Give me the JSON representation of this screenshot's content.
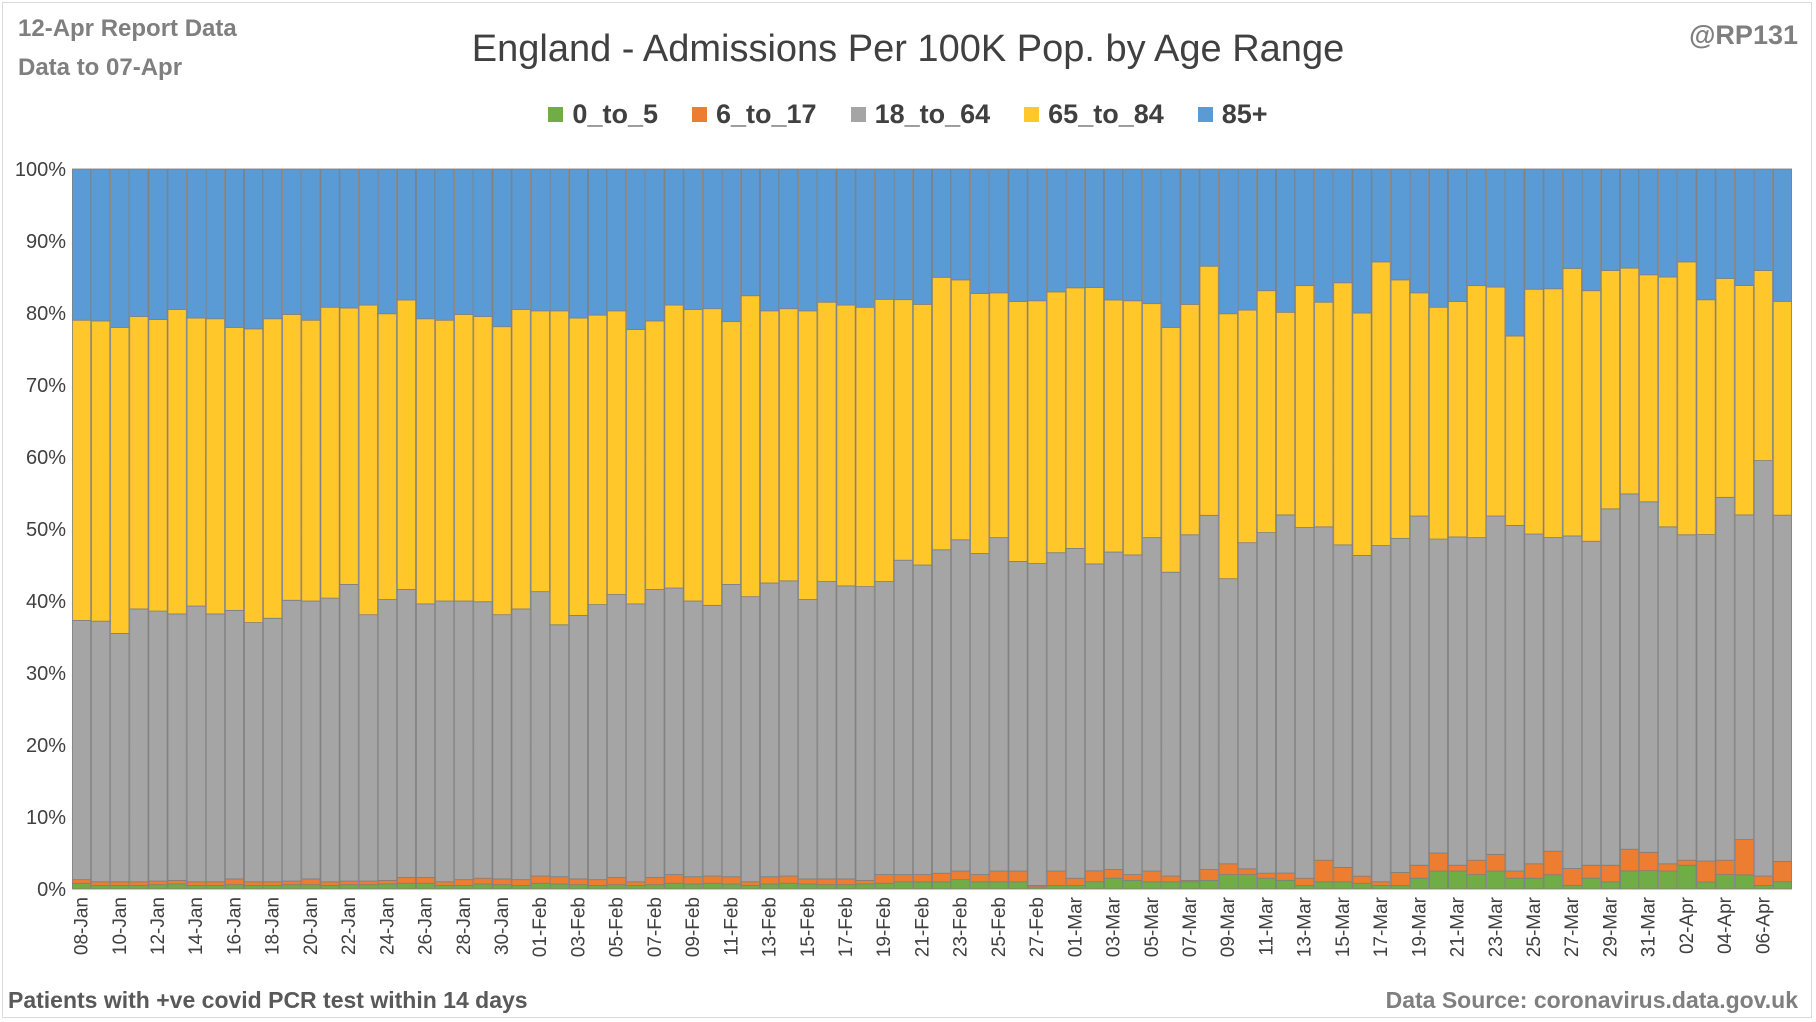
{
  "header": {
    "report_date": "12-Apr Report Data",
    "data_to": "Data to 07-Apr",
    "handle": "@RP131"
  },
  "footer": {
    "note": "Patients with  +ve covid PCR test within 14 days",
    "source": "Data Source: coronavirus.data.gov.uk"
  },
  "chart_data": {
    "type": "bar",
    "stacked": true,
    "normalized": true,
    "title": "England - Admissions Per 100K Pop. by Age Range",
    "xlabel": "",
    "ylabel": "",
    "ylim": [
      0,
      100
    ],
    "yticks": [
      "0%",
      "10%",
      "20%",
      "30%",
      "40%",
      "50%",
      "60%",
      "70%",
      "80%",
      "90%",
      "100%"
    ],
    "grid": true,
    "legend_position": "top",
    "categories": [
      "08-Jan",
      "09-Jan",
      "10-Jan",
      "11-Jan",
      "12-Jan",
      "13-Jan",
      "14-Jan",
      "15-Jan",
      "16-Jan",
      "17-Jan",
      "18-Jan",
      "19-Jan",
      "20-Jan",
      "21-Jan",
      "22-Jan",
      "23-Jan",
      "24-Jan",
      "25-Jan",
      "26-Jan",
      "27-Jan",
      "28-Jan",
      "29-Jan",
      "30-Jan",
      "31-Jan",
      "01-Feb",
      "02-Feb",
      "03-Feb",
      "04-Feb",
      "05-Feb",
      "06-Feb",
      "07-Feb",
      "08-Feb",
      "09-Feb",
      "10-Feb",
      "11-Feb",
      "12-Feb",
      "13-Feb",
      "14-Feb",
      "15-Feb",
      "16-Feb",
      "17-Feb",
      "18-Feb",
      "19-Feb",
      "20-Feb",
      "21-Feb",
      "22-Feb",
      "23-Feb",
      "24-Feb",
      "25-Feb",
      "26-Feb",
      "27-Feb",
      "28-Feb",
      "01-Mar",
      "02-Mar",
      "03-Mar",
      "04-Mar",
      "05-Mar",
      "06-Mar",
      "07-Mar",
      "08-Mar",
      "09-Mar",
      "10-Mar",
      "11-Mar",
      "12-Mar",
      "13-Mar",
      "14-Mar",
      "15-Mar",
      "16-Mar",
      "17-Mar",
      "18-Mar",
      "19-Mar",
      "20-Mar",
      "21-Mar",
      "22-Mar",
      "23-Mar",
      "24-Mar",
      "25-Mar",
      "26-Mar",
      "27-Mar",
      "28-Mar",
      "29-Mar",
      "30-Mar",
      "31-Mar",
      "01-Apr",
      "02-Apr",
      "03-Apr",
      "04-Apr",
      "05-Apr",
      "06-Apr",
      "07-Apr"
    ],
    "series": [
      {
        "name": "0_to_5",
        "color": "#70ad47",
        "values": [
          0.8,
          0.5,
          0.5,
          0.5,
          0.6,
          0.7,
          0.5,
          0.5,
          0.6,
          0.5,
          0.5,
          0.6,
          0.6,
          0.5,
          0.6,
          0.6,
          0.7,
          0.8,
          0.8,
          0.5,
          0.5,
          0.7,
          0.6,
          0.5,
          0.8,
          0.7,
          0.6,
          0.5,
          0.6,
          0.5,
          0.6,
          0.8,
          0.7,
          0.8,
          0.7,
          0.5,
          0.7,
          0.8,
          0.7,
          0.6,
          0.6,
          0.7,
          0.8,
          1.0,
          1.0,
          1.0,
          1.3,
          1.0,
          1.0,
          1.0,
          0.3,
          0.5,
          0.5,
          1.0,
          1.5,
          1.2,
          1.0,
          1.0,
          1.0,
          1.2,
          2.0,
          2.0,
          1.5,
          1.2,
          0.5,
          1.0,
          1.0,
          0.8,
          0.5,
          0.5,
          1.5,
          2.5,
          2.5,
          2.0,
          2.5,
          1.5,
          1.5,
          2.0,
          0.5,
          1.5,
          1.0,
          2.5,
          2.5,
          2.5,
          3.3,
          1.0,
          2.0,
          2.0,
          0.5,
          1.0
        ]
      },
      {
        "name": "6_to_17",
        "color": "#ed7d31",
        "values": [
          0.5,
          0.5,
          0.5,
          0.5,
          0.5,
          0.5,
          0.5,
          0.5,
          0.8,
          0.5,
          0.5,
          0.5,
          0.8,
          0.5,
          0.5,
          0.5,
          0.5,
          0.8,
          0.8,
          0.5,
          0.8,
          0.8,
          0.8,
          0.8,
          1.0,
          1.0,
          0.8,
          0.8,
          1.0,
          0.5,
          1.0,
          1.2,
          1.0,
          1.0,
          1.0,
          0.5,
          1.0,
          1.0,
          0.7,
          0.8,
          0.8,
          0.5,
          1.2,
          1.0,
          1.0,
          1.2,
          1.2,
          1.0,
          1.5,
          1.5,
          0.2,
          2.0,
          1.0,
          1.5,
          1.2,
          0.8,
          1.5,
          0.8,
          0.2,
          1.5,
          1.5,
          0.8,
          0.7,
          1.0,
          1.0,
          3.0,
          2.0,
          1.0,
          0.5,
          1.8,
          1.8,
          2.5,
          0.8,
          2.0,
          2.3,
          1.0,
          2.0,
          3.3,
          2.3,
          1.8,
          2.3,
          3.0,
          2.5,
          1.0,
          0.7,
          3.0,
          2.0,
          5.0,
          1.3,
          2.8
        ]
      },
      {
        "name": "18_to_64",
        "color": "#a5a5a5",
        "values": [
          36.0,
          36.2,
          34.5,
          37.9,
          37.5,
          37.0,
          38.3,
          37.2,
          37.3,
          36.0,
          36.6,
          39.0,
          38.6,
          39.4,
          41.2,
          37.0,
          39.0,
          40.0,
          38.0,
          39.0,
          38.7,
          38.4,
          36.7,
          37.6,
          39.5,
          35.0,
          36.6,
          38.2,
          39.3,
          38.6,
          40.0,
          39.8,
          38.3,
          37.6,
          40.6,
          39.6,
          40.8,
          41.0,
          38.8,
          41.3,
          40.7,
          40.8,
          40.7,
          43.8,
          43.0,
          45.1,
          46.0,
          44.6,
          46.3,
          43.0,
          44.7,
          44.3,
          45.8,
          42.2,
          44.1,
          44.4,
          46.3,
          42.2,
          48.0,
          49.2,
          39.6,
          45.3,
          47.3,
          49.5,
          48.7,
          46.3,
          44.8,
          45.0,
          46.7,
          46.4,
          48.5,
          43.6,
          45.6,
          44.8,
          47.0,
          48.0,
          45.8,
          44.0,
          45.5,
          45.0,
          49.5,
          49.1,
          47.7,
          46.8,
          45.2,
          46.7,
          50.4,
          46.0,
          57.7,
          47.6
        ]
      },
      {
        "name": "65_to_84",
        "color": "#ffc729",
        "values": [
          41.7,
          41.7,
          42.5,
          40.6,
          40.5,
          42.3,
          40.0,
          41.0,
          39.3,
          40.8,
          41.6,
          39.7,
          39.0,
          40.4,
          38.4,
          43.0,
          39.7,
          40.2,
          39.6,
          39.0,
          39.8,
          39.6,
          40.0,
          41.6,
          39.0,
          43.6,
          41.3,
          40.2,
          39.4,
          38.1,
          37.3,
          39.3,
          40.5,
          41.2,
          36.5,
          41.8,
          37.8,
          37.8,
          40.1,
          38.8,
          39.0,
          38.8,
          39.2,
          36.3,
          36.2,
          38.0,
          36.1,
          36.1,
          34.0,
          36.1,
          36.5,
          36.3,
          36.2,
          38.0,
          35.0,
          35.3,
          32.5,
          34.0,
          32.0,
          34.6,
          36.8,
          32.3,
          33.6,
          28.0,
          33.6,
          31.2,
          36.4,
          34.0,
          39.4,
          35.9,
          31.0,
          32.2,
          32.7,
          35.0,
          31.8,
          26.3,
          34.0,
          34.9,
          36.6,
          34.8,
          33.1,
          31.2,
          30.9,
          34.7,
          37.9,
          33.6,
          30.4,
          32.5,
          26.4,
          29.4
        ]
      },
      {
        "name": "85+",
        "color": "#5b9bd5",
        "values": [
          21.0,
          21.1,
          22.0,
          20.5,
          20.9,
          19.5,
          20.7,
          20.8,
          22.0,
          22.2,
          20.8,
          20.2,
          21.0,
          19.2,
          19.3,
          18.9,
          20.1,
          18.2,
          20.8,
          21.0,
          20.2,
          20.5,
          21.9,
          19.5,
          19.7,
          19.7,
          20.7,
          20.3,
          19.7,
          22.3,
          21.1,
          18.9,
          19.5,
          19.4,
          21.2,
          17.6,
          19.7,
          19.4,
          19.7,
          18.5,
          18.9,
          19.2,
          18.1,
          18.2,
          18.8,
          15.1,
          15.4,
          17.3,
          17.2,
          18.4,
          18.3,
          17.1,
          16.5,
          16.3,
          18.2,
          18.3,
          18.7,
          22.0,
          18.8,
          13.5,
          20.1,
          19.6,
          16.9,
          19.8,
          16.2,
          18.5,
          15.8,
          20.2,
          12.9,
          15.4,
          17.2,
          19.2,
          18.4,
          16.2,
          16.4,
          23.2,
          16.7,
          16.8,
          13.6,
          16.9,
          14.1,
          13.7,
          14.4,
          15.0,
          12.9,
          18.7,
          15.2,
          16.5,
          14.1,
          18.2
        ]
      }
    ]
  }
}
